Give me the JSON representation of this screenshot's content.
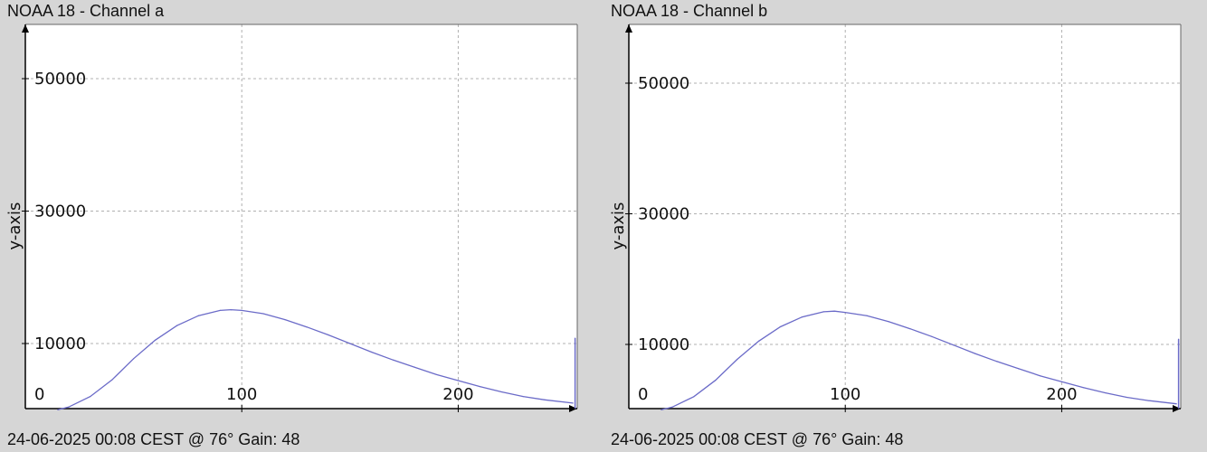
{
  "colors": {
    "background": "#d6d6d6",
    "plot_bg": "#ffffff",
    "grid": "#b0b0b0",
    "line": "#6b6bc8",
    "axis": "#000000"
  },
  "panels": [
    {
      "title": "NOAA 18 - Channel a",
      "footer": "24-06-2025 00:08 CEST @ 76° Gain: 48"
    },
    {
      "title": "NOAA 18 - Channel b",
      "footer": "24-06-2025 00:08 CEST @ 76° Gain: 48"
    }
  ],
  "chart_data": [
    {
      "type": "line",
      "title": "NOAA 18 - Channel a",
      "xlabel": "",
      "ylabel": "y-axis",
      "xlim": [
        0,
        255
      ],
      "ylim": [
        -200,
        58000
      ],
      "x_ticks": [
        100,
        200
      ],
      "y_ticks": [
        50000,
        30000,
        10000
      ],
      "origin_label": "0",
      "grid": true,
      "series": [
        {
          "x": [
            15,
            20,
            30,
            40,
            50,
            60,
            70,
            80,
            90,
            95,
            100,
            110,
            120,
            130,
            140,
            150,
            160,
            170,
            180,
            190,
            200,
            210,
            220,
            230,
            240,
            253,
            254
          ],
          "values": [
            0,
            400,
            2000,
            4500,
            7700,
            10500,
            12700,
            14200,
            15000,
            15100,
            15000,
            14500,
            13600,
            12500,
            11300,
            10000,
            8700,
            7500,
            6400,
            5300,
            4400,
            3500,
            2700,
            2000,
            1500,
            1000,
            10800
          ]
        }
      ]
    },
    {
      "type": "line",
      "title": "NOAA 18 - Channel b",
      "xlabel": "",
      "ylabel": "y-axis",
      "xlim": [
        0,
        255
      ],
      "ylim": [
        -200,
        58000
      ],
      "x_ticks": [
        100,
        200
      ],
      "y_ticks": [
        50000,
        30000,
        10000
      ],
      "origin_label": "0",
      "grid": true,
      "series": [
        {
          "x": [
            15,
            20,
            30,
            40,
            50,
            60,
            70,
            80,
            90,
            95,
            100,
            110,
            120,
            130,
            140,
            150,
            160,
            170,
            180,
            190,
            200,
            210,
            220,
            230,
            240,
            253,
            254
          ],
          "values": [
            0,
            400,
            2000,
            4500,
            7700,
            10500,
            12700,
            14200,
            15000,
            15100,
            14900,
            14400,
            13500,
            12400,
            11200,
            9900,
            8600,
            7400,
            6300,
            5200,
            4300,
            3400,
            2600,
            1900,
            1400,
            900,
            10800
          ]
        }
      ]
    }
  ]
}
